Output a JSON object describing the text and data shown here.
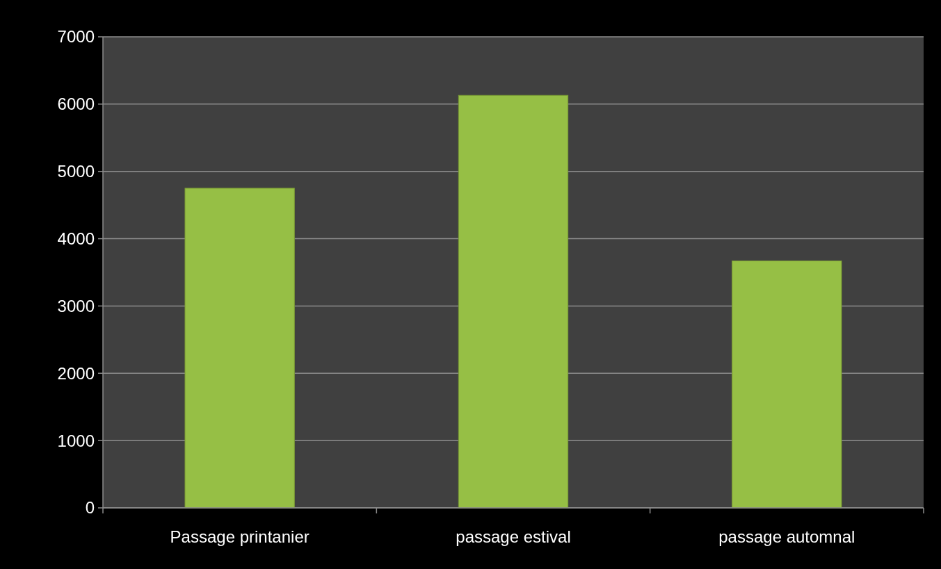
{
  "chart_data": {
    "type": "bar",
    "categories": [
      "Passage printanier",
      "passage estival",
      "passage automnal"
    ],
    "values": [
      4750,
      6130,
      3670
    ],
    "color": "#96bf45",
    "ylim": [
      0,
      7000
    ],
    "yticks": [
      0,
      1000,
      2000,
      3000,
      4000,
      5000,
      6000,
      7000
    ],
    "grid": "y"
  }
}
